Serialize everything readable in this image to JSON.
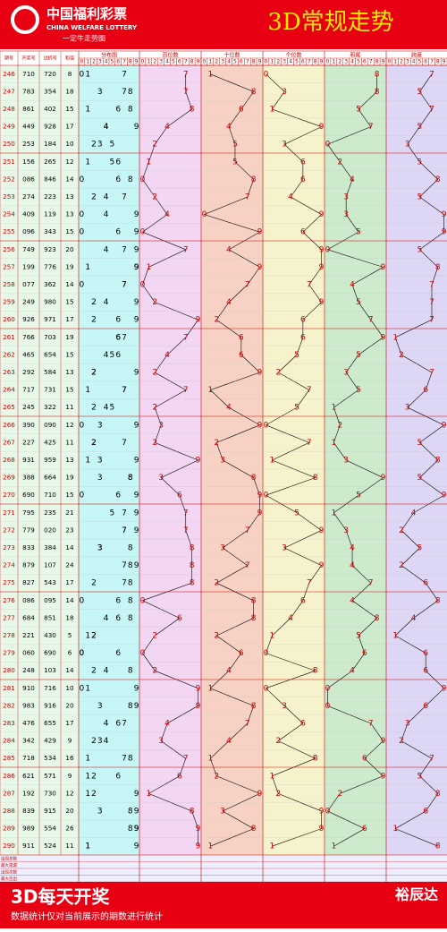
{
  "header": {
    "logo_cn": "中国福利彩票",
    "logo_en": "CHINA WELFARE LOTTERY",
    "slogan": "一定牛走势图",
    "title": "3D常规走势"
  },
  "columns": [
    "期号",
    "开奖号",
    "试机号",
    "和值",
    "分布图",
    "百位数",
    "十位数",
    "个位数",
    "和尾",
    "跨度"
  ],
  "digits": [
    0,
    1,
    2,
    3,
    4,
    5,
    6,
    7,
    8,
    9
  ],
  "rows": [
    [
      "246",
      "710",
      "720",
      8
    ],
    [
      "247",
      "783",
      "354",
      18
    ],
    [
      "248",
      "861",
      "402",
      15
    ],
    [
      "249",
      "449",
      "928",
      17
    ],
    [
      "250",
      "253",
      "184",
      10
    ],
    [
      "251",
      "156",
      "265",
      12
    ],
    [
      "252",
      "086",
      "846",
      14
    ],
    [
      "253",
      "274",
      "223",
      13
    ],
    [
      "254",
      "409",
      "119",
      13
    ],
    [
      "255",
      "096",
      "343",
      15
    ],
    [
      "256",
      "749",
      "923",
      20
    ],
    [
      "257",
      "199",
      "776",
      19
    ],
    [
      "258",
      "077",
      "362",
      14
    ],
    [
      "259",
      "249",
      "980",
      15
    ],
    [
      "260",
      "926",
      "971",
      17
    ],
    [
      "261",
      "766",
      "703",
      19
    ],
    [
      "262",
      "465",
      "654",
      15
    ],
    [
      "263",
      "292",
      "584",
      13
    ],
    [
      "264",
      "717",
      "731",
      15
    ],
    [
      "265",
      "245",
      "322",
      11
    ],
    [
      "266",
      "390",
      "090",
      12
    ],
    [
      "267",
      "227",
      "425",
      11
    ],
    [
      "268",
      "931",
      "959",
      13
    ],
    [
      "269",
      "388",
      "664",
      19
    ],
    [
      "270",
      "690",
      "710",
      15
    ],
    [
      "271",
      "795",
      "235",
      21
    ],
    [
      "272",
      "779",
      "020",
      23
    ],
    [
      "273",
      "833",
      "384",
      14
    ],
    [
      "274",
      "879",
      "107",
      24
    ],
    [
      "275",
      "827",
      "543",
      17
    ],
    [
      "276",
      "086",
      "095",
      14
    ],
    [
      "277",
      "684",
      "851",
      18
    ],
    [
      "278",
      "221",
      "430",
      5
    ],
    [
      "279",
      "060",
      "690",
      6
    ],
    [
      "280",
      "248",
      "103",
      14
    ],
    [
      "281",
      "910",
      "716",
      10
    ],
    [
      "282",
      "983",
      "916",
      20
    ],
    [
      "283",
      "476",
      "655",
      17
    ],
    [
      "284",
      "342",
      "429",
      9
    ],
    [
      "285",
      "718",
      "534",
      16
    ],
    [
      "286",
      "621",
      "571",
      9
    ],
    [
      "287",
      "192",
      "730",
      12
    ],
    [
      "288",
      "839",
      "915",
      20
    ],
    [
      "289",
      "989",
      "554",
      26
    ],
    [
      "290",
      "911",
      "524",
      11
    ]
  ],
  "stats_labels": [
    "出现总数",
    "最大遗漏",
    "出现次数",
    "最大连出"
  ],
  "footer": {
    "title": "3D每天开奖",
    "note": "数据统计仅对当前展示的期数进行统计",
    "brand": "裕辰达"
  }
}
